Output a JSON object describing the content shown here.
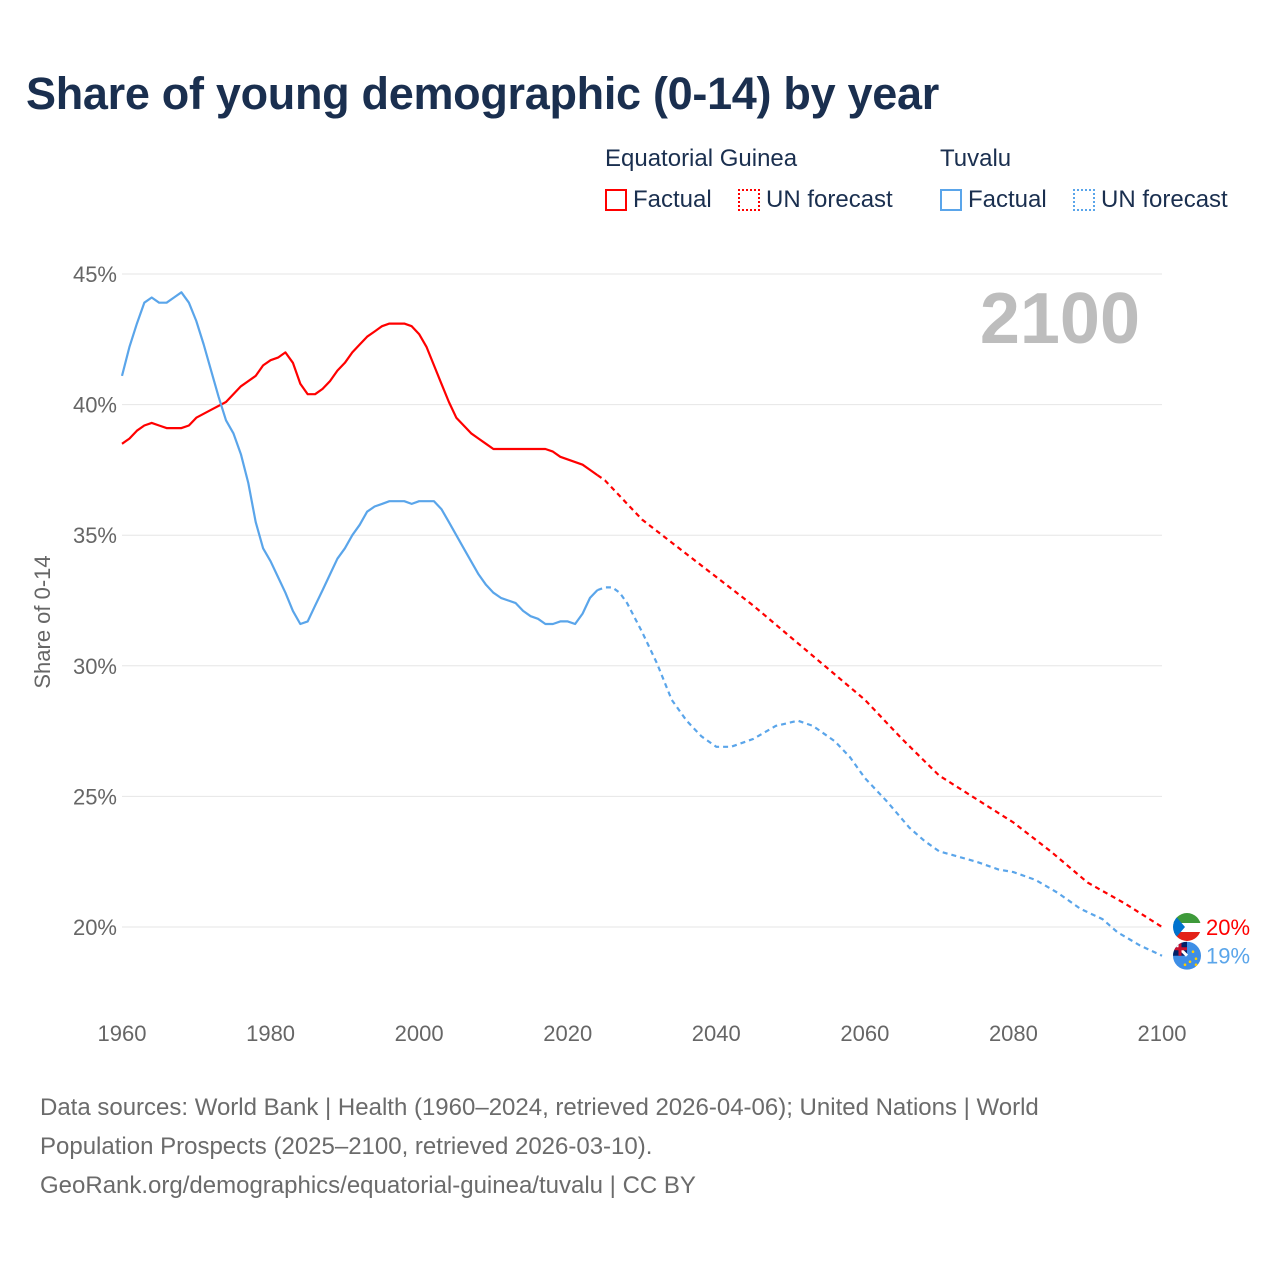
{
  "title": "Share of young demographic (0-14) by year",
  "legend": {
    "groups": [
      {
        "name": "Equatorial Guinea",
        "factual": "Factual",
        "forecast": "UN forecast",
        "color": "#ff0000"
      },
      {
        "name": "Tuvalu",
        "factual": "Factual",
        "forecast": "UN forecast",
        "color": "#5aa5ea"
      }
    ]
  },
  "footer": {
    "line1": "Data sources: World Bank | Health (1960–2024, retrieved 2026-04-06); United Nations | World",
    "line2": "Population Prospects (2025–2100, retrieved 2026-03-10).",
    "line3": "GeoRank.org/demographics/equatorial-guinea/tuvalu | CC BY"
  },
  "chart_data": {
    "type": "line",
    "title": "Share of young demographic (0-14) by year",
    "ylabel": "Share of 0-14",
    "xlabel": "",
    "current_year_label": "2100",
    "xlim": [
      1960,
      2100
    ],
    "ylim": [
      17.5,
      45
    ],
    "x_ticks": [
      "1960",
      "1980",
      "2000",
      "2020",
      "2040",
      "2060",
      "2080",
      "2100"
    ],
    "y_ticks": [
      {
        "v": 45,
        "label": "45%"
      },
      {
        "v": 40,
        "label": "40%"
      },
      {
        "v": 35,
        "label": "35%"
      },
      {
        "v": 30,
        "label": "30%"
      },
      {
        "v": 25,
        "label": "25%"
      },
      {
        "v": 20,
        "label": "20%"
      }
    ],
    "grid": true,
    "series": [
      {
        "name": "Equatorial Guinea",
        "color": "#ff0000",
        "end_label": "20%",
        "factual": {
          "x": [
            1960,
            1961,
            1962,
            1963,
            1964,
            1965,
            1966,
            1968,
            1969,
            1970,
            1972,
            1974,
            1976,
            1978,
            1979,
            1980,
            1981,
            1982,
            1983,
            1984,
            1985,
            1986,
            1987,
            1988,
            1989,
            1990,
            1991,
            1992,
            1993,
            1994,
            1995,
            1996,
            1998,
            1999,
            2000,
            2001,
            2002,
            2003,
            2004,
            2005,
            2006,
            2007,
            2008,
            2009,
            2010,
            2017,
            2018,
            2019,
            2022,
            2023,
            2024
          ],
          "y": [
            38.5,
            38.7,
            39.0,
            39.2,
            39.3,
            39.2,
            39.1,
            39.1,
            39.2,
            39.5,
            39.8,
            40.1,
            40.7,
            41.1,
            41.5,
            41.7,
            41.8,
            42.0,
            41.6,
            40.8,
            40.4,
            40.4,
            40.6,
            40.9,
            41.3,
            41.6,
            42.0,
            42.3,
            42.6,
            42.8,
            43.0,
            43.1,
            43.1,
            43.0,
            42.7,
            42.2,
            41.5,
            40.8,
            40.1,
            39.5,
            39.2,
            38.9,
            38.7,
            38.5,
            38.3,
            38.3,
            38.2,
            38.0,
            37.7,
            37.5,
            37.3
          ]
        },
        "forecast": {
          "x": [
            2024,
            2025,
            2030,
            2035,
            2040,
            2045,
            2050,
            2055,
            2060,
            2065,
            2070,
            2075,
            2080,
            2085,
            2090,
            2095,
            2100
          ],
          "y": [
            37.3,
            37.1,
            35.6,
            34.5,
            33.4,
            32.3,
            31.1,
            29.9,
            28.7,
            27.2,
            25.8,
            24.9,
            24.0,
            22.9,
            21.7,
            20.9,
            20.0
          ]
        }
      },
      {
        "name": "Tuvalu",
        "color": "#5aa5ea",
        "end_label": "19%",
        "factual": {
          "x": [
            1960,
            1961,
            1962,
            1963,
            1964,
            1965,
            1966,
            1967,
            1968,
            1969,
            1970,
            1971,
            1972,
            1973,
            1974,
            1975,
            1976,
            1977,
            1978,
            1979,
            1980,
            1981,
            1982,
            1983,
            1984,
            1985,
            1986,
            1987,
            1988,
            1989,
            1990,
            1991,
            1992,
            1993,
            1994,
            1995,
            1996,
            1998,
            1999,
            2000,
            2002,
            2003,
            2004,
            2005,
            2006,
            2007,
            2008,
            2009,
            2010,
            2011,
            2013,
            2014,
            2015,
            2016,
            2017,
            2018,
            2019,
            2020,
            2021,
            2022,
            2023,
            2024
          ],
          "y": [
            41.1,
            42.2,
            43.1,
            43.9,
            44.1,
            43.9,
            43.9,
            44.1,
            44.3,
            43.9,
            43.2,
            42.3,
            41.3,
            40.3,
            39.4,
            38.9,
            38.1,
            37.0,
            35.5,
            34.5,
            34.0,
            33.4,
            32.8,
            32.1,
            31.6,
            31.7,
            32.3,
            32.9,
            33.5,
            34.1,
            34.5,
            35.0,
            35.4,
            35.9,
            36.1,
            36.2,
            36.3,
            36.3,
            36.2,
            36.3,
            36.3,
            36.0,
            35.5,
            35.0,
            34.5,
            34.0,
            33.5,
            33.1,
            32.8,
            32.6,
            32.4,
            32.1,
            31.9,
            31.8,
            31.6,
            31.6,
            31.7,
            31.7,
            31.6,
            32.0,
            32.6,
            32.9
          ]
        },
        "forecast": {
          "x": [
            2024,
            2025,
            2026,
            2027,
            2028,
            2030,
            2032,
            2034,
            2036,
            2038,
            2040,
            2042,
            2045,
            2048,
            2051,
            2053,
            2056,
            2058,
            2060,
            2063,
            2066,
            2068,
            2070,
            2075,
            2078,
            2080,
            2083,
            2086,
            2089,
            2092,
            2094,
            2097,
            2100
          ],
          "y": [
            32.9,
            33.0,
            33.0,
            32.8,
            32.4,
            31.3,
            30.1,
            28.7,
            27.9,
            27.3,
            26.9,
            26.9,
            27.2,
            27.7,
            27.9,
            27.7,
            27.1,
            26.5,
            25.7,
            24.8,
            23.8,
            23.3,
            22.9,
            22.5,
            22.2,
            22.1,
            21.8,
            21.3,
            20.7,
            20.3,
            19.8,
            19.3,
            18.9
          ]
        }
      }
    ]
  }
}
